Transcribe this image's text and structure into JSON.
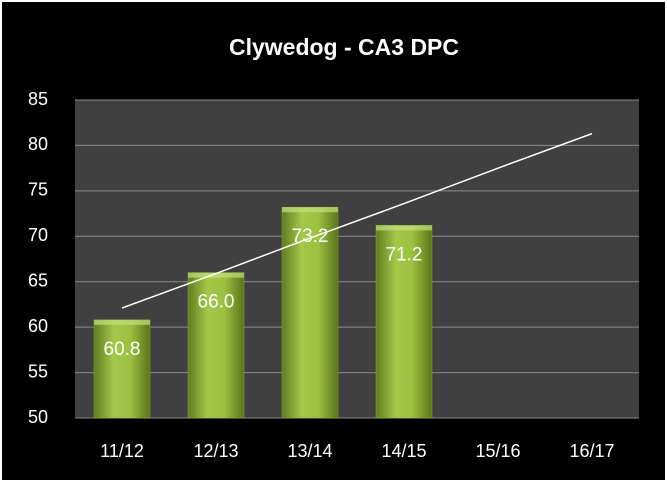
{
  "chart_data": {
    "type": "bar",
    "title": "Clywedog - CA3 DPC",
    "categories": [
      "11/12",
      "12/13",
      "13/14",
      "14/15",
      "15/16",
      "16/17"
    ],
    "values": [
      60.8,
      66.0,
      73.2,
      71.2,
      null,
      null
    ],
    "value_labels": [
      "60.8",
      "66.0",
      "73.2",
      "71.2",
      null,
      null
    ],
    "color": "#8db13a",
    "trendline": {
      "color": "#ffffff",
      "values": [
        62.1,
        65.9,
        69.8,
        73.6,
        77.5,
        81.3
      ]
    },
    "ylim": [
      50,
      85
    ],
    "yticks": [
      50,
      55,
      60,
      65,
      70,
      75,
      80,
      85
    ],
    "grid": true
  }
}
